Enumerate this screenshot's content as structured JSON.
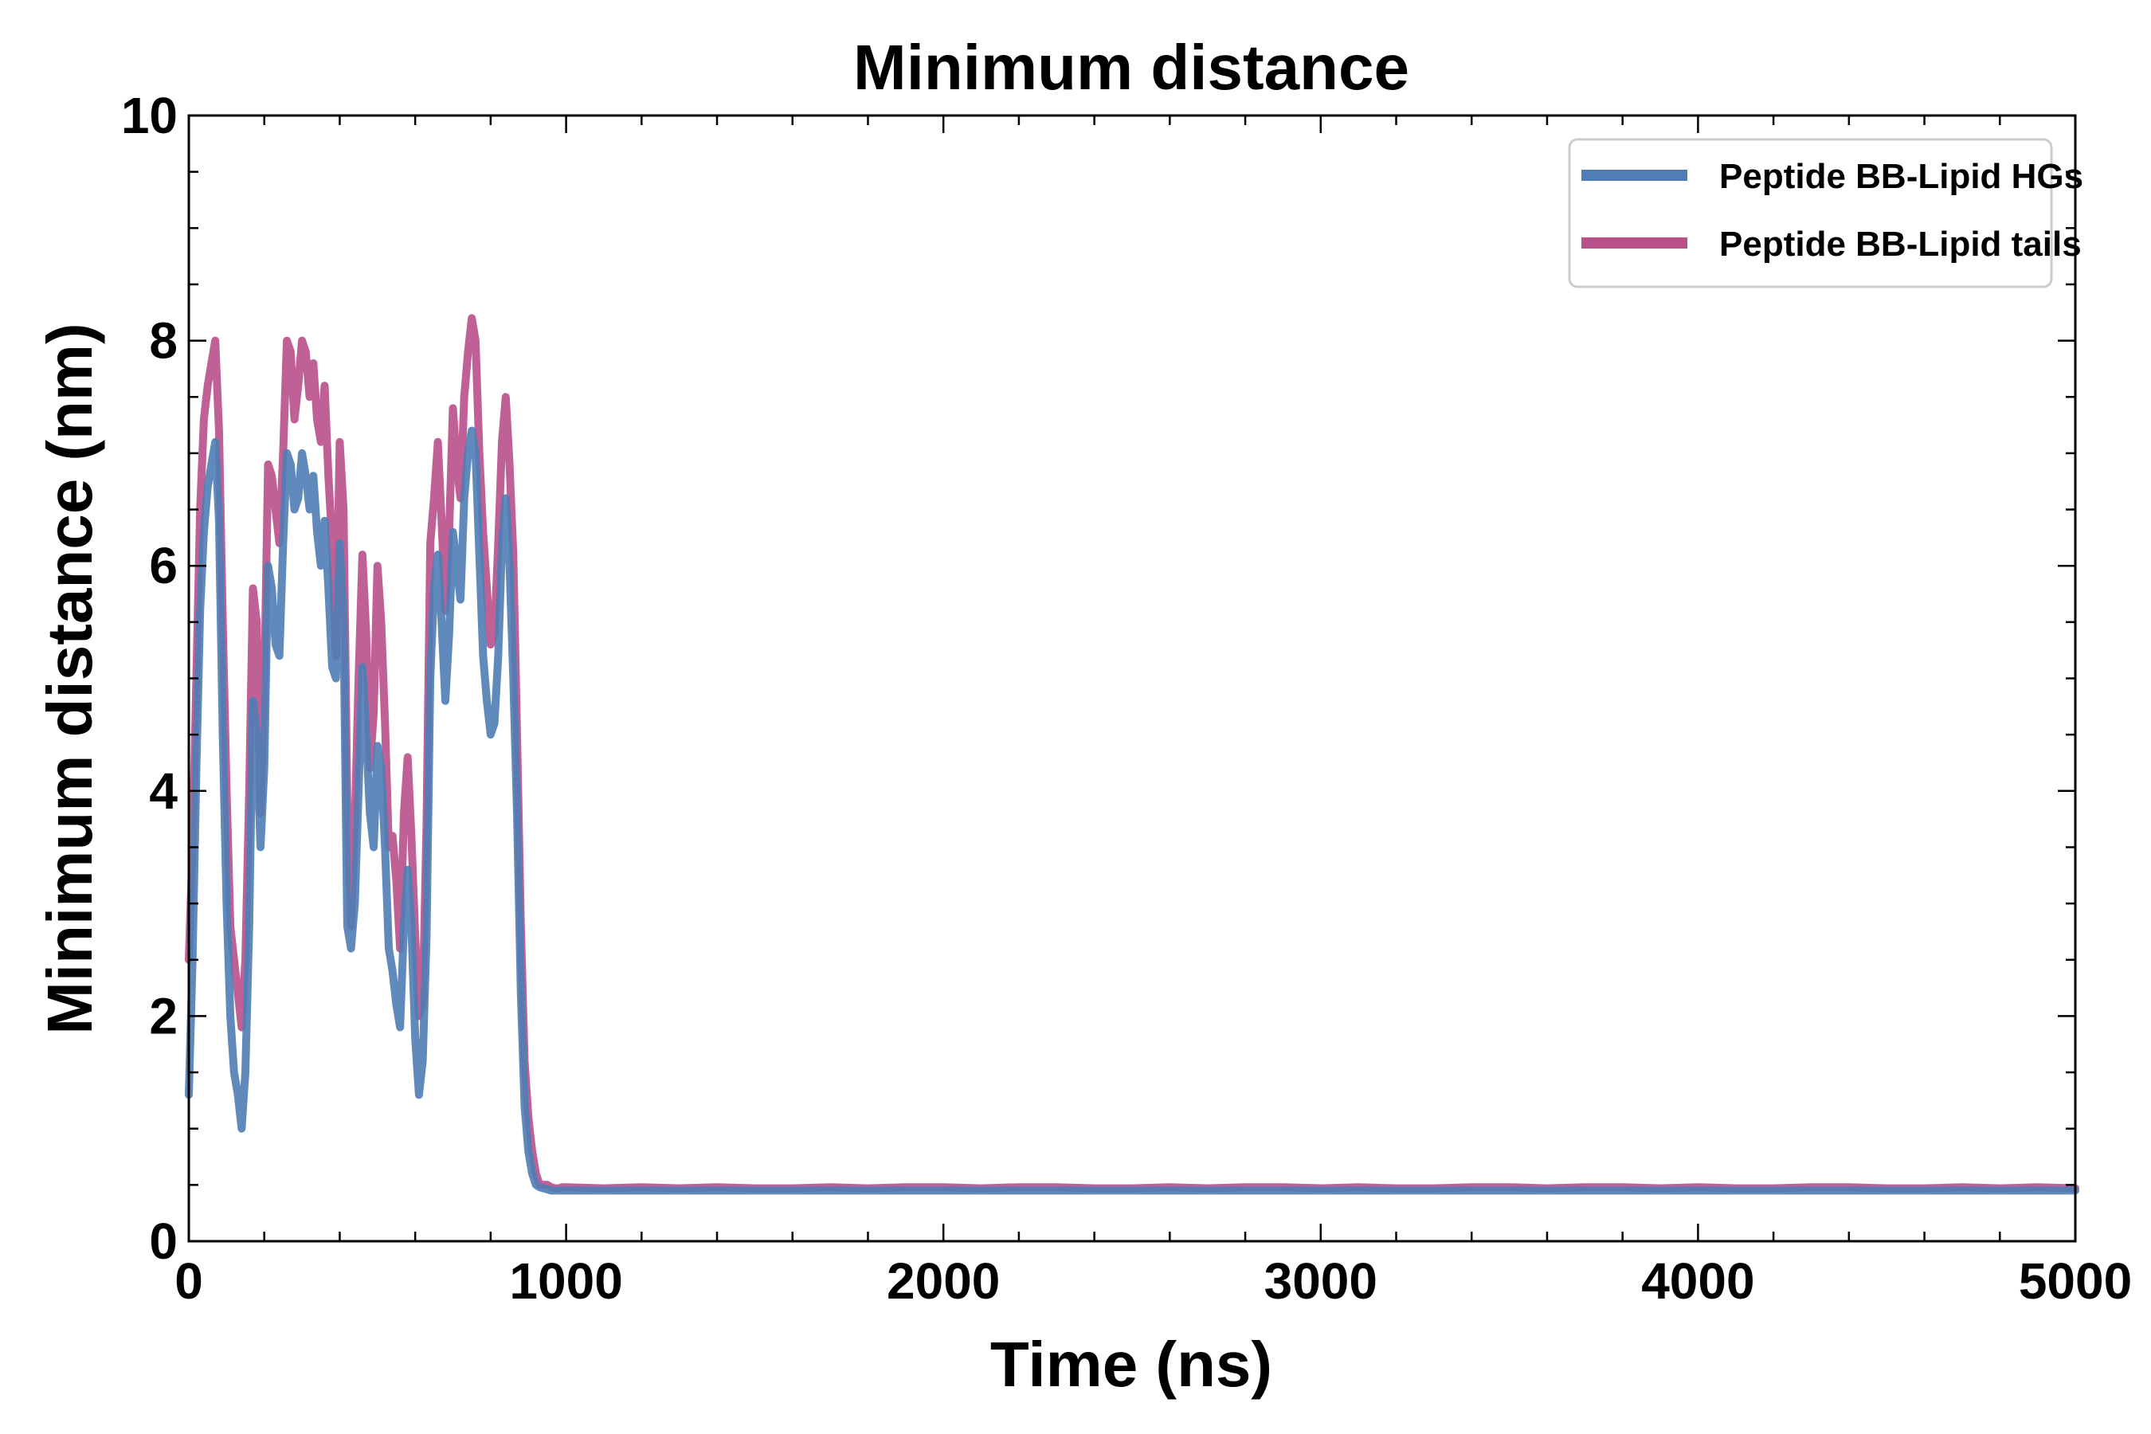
{
  "chart_data": {
    "type": "line",
    "title": "Minimum distance",
    "xlabel": "Time (ns)",
    "ylabel": "Minimum distance (nm)",
    "xlim": [
      0,
      5000
    ],
    "ylim": [
      0,
      10
    ],
    "x_ticks": [
      0,
      1000,
      2000,
      3000,
      4000,
      5000
    ],
    "y_ticks": [
      0,
      2,
      4,
      6,
      8,
      10
    ],
    "x_minor_step": 200,
    "y_minor_step": 0.5,
    "grid": false,
    "legend_position": "top-right",
    "series": [
      {
        "name": "Peptide BB-Lipid tails",
        "color": "#B8508A",
        "x": [
          0,
          10,
          20,
          30,
          40,
          50,
          60,
          70,
          80,
          90,
          100,
          110,
          120,
          130,
          140,
          150,
          160,
          170,
          180,
          190,
          200,
          210,
          220,
          230,
          240,
          250,
          260,
          270,
          280,
          290,
          300,
          310,
          320,
          330,
          340,
          350,
          360,
          370,
          380,
          390,
          400,
          410,
          420,
          430,
          440,
          450,
          460,
          470,
          480,
          490,
          500,
          510,
          520,
          530,
          540,
          550,
          560,
          570,
          580,
          590,
          600,
          610,
          620,
          630,
          640,
          650,
          660,
          670,
          680,
          690,
          700,
          710,
          720,
          730,
          740,
          750,
          760,
          770,
          780,
          790,
          800,
          810,
          820,
          830,
          840,
          850,
          860,
          870,
          880,
          890,
          900,
          910,
          920,
          930,
          940,
          950,
          960,
          970,
          980,
          990,
          1000,
          1100,
          1200,
          1300,
          1400,
          1500,
          1600,
          1700,
          1800,
          1900,
          2000,
          2100,
          2200,
          2300,
          2400,
          2500,
          2600,
          2700,
          2800,
          2900,
          3000,
          3100,
          3200,
          3300,
          3400,
          3500,
          3600,
          3700,
          3800,
          3900,
          4000,
          4100,
          4200,
          4300,
          4400,
          4500,
          4600,
          4700,
          4800,
          4900,
          5000
        ],
        "y": [
          2.5,
          3.5,
          5.0,
          6.5,
          7.3,
          7.6,
          7.8,
          8.0,
          7.2,
          5.5,
          4.0,
          2.8,
          2.5,
          2.2,
          1.9,
          2.5,
          4.0,
          5.8,
          5.5,
          3.8,
          4.9,
          6.9,
          6.8,
          6.5,
          6.2,
          7.0,
          8.0,
          7.9,
          7.3,
          7.6,
          8.0,
          7.9,
          7.5,
          7.8,
          7.3,
          7.1,
          7.6,
          6.8,
          6.2,
          5.2,
          7.1,
          6.5,
          3.9,
          2.8,
          3.7,
          5.0,
          6.1,
          5.4,
          4.2,
          4.7,
          6.0,
          5.5,
          4.6,
          3.5,
          3.6,
          3.2,
          2.6,
          3.8,
          4.3,
          3.6,
          2.7,
          2.0,
          2.1,
          3.7,
          6.2,
          6.6,
          7.1,
          6.4,
          5.6,
          6.3,
          7.4,
          6.9,
          6.6,
          7.5,
          7.9,
          8.2,
          8.0,
          7.0,
          6.3,
          5.8,
          5.3,
          5.4,
          6.2,
          7.1,
          7.5,
          6.9,
          6.1,
          4.5,
          2.8,
          1.6,
          1.1,
          0.8,
          0.6,
          0.5,
          0.5,
          0.5,
          0.48,
          0.47,
          0.47,
          0.48,
          0.48,
          0.47,
          0.48,
          0.47,
          0.48,
          0.47,
          0.47,
          0.48,
          0.47,
          0.48,
          0.48,
          0.47,
          0.48,
          0.48,
          0.47,
          0.47,
          0.48,
          0.47,
          0.48,
          0.48,
          0.47,
          0.48,
          0.47,
          0.47,
          0.48,
          0.48,
          0.47,
          0.48,
          0.48,
          0.47,
          0.48,
          0.47,
          0.47,
          0.48,
          0.48,
          0.47,
          0.47,
          0.48,
          0.47,
          0.48,
          0.47
        ]
      },
      {
        "name": "Peptide BB-Lipid HGs",
        "color": "#4F7DB5",
        "x": [
          0,
          10,
          20,
          30,
          40,
          50,
          60,
          70,
          80,
          90,
          100,
          110,
          120,
          130,
          140,
          150,
          160,
          170,
          180,
          190,
          200,
          210,
          220,
          230,
          240,
          250,
          260,
          270,
          280,
          290,
          300,
          310,
          320,
          330,
          340,
          350,
          360,
          370,
          380,
          390,
          400,
          410,
          420,
          430,
          440,
          450,
          460,
          470,
          480,
          490,
          500,
          510,
          520,
          530,
          540,
          550,
          560,
          570,
          580,
          590,
          600,
          610,
          620,
          630,
          640,
          650,
          660,
          670,
          680,
          690,
          700,
          710,
          720,
          730,
          740,
          750,
          760,
          770,
          780,
          790,
          800,
          810,
          820,
          830,
          840,
          850,
          860,
          870,
          880,
          890,
          900,
          910,
          920,
          930,
          940,
          950,
          960,
          970,
          980,
          990,
          1000,
          1100,
          1200,
          1300,
          1400,
          1500,
          1600,
          1700,
          1800,
          1900,
          2000,
          2100,
          2200,
          2300,
          2400,
          2500,
          2600,
          2700,
          2800,
          2900,
          3000,
          3100,
          3200,
          3300,
          3400,
          3500,
          3600,
          3700,
          3800,
          3900,
          4000,
          4100,
          4200,
          4300,
          4400,
          4500,
          4600,
          4700,
          4800,
          4900,
          5000
        ],
        "y": [
          1.3,
          2.5,
          4.2,
          5.6,
          6.3,
          6.7,
          6.9,
          7.1,
          6.4,
          4.5,
          3.0,
          2.0,
          1.5,
          1.3,
          1.0,
          1.5,
          2.8,
          4.8,
          4.5,
          3.5,
          4.2,
          6.0,
          5.8,
          5.3,
          5.2,
          6.2,
          7.0,
          6.9,
          6.5,
          6.6,
          7.0,
          6.8,
          6.5,
          6.8,
          6.3,
          6.0,
          6.4,
          5.8,
          5.1,
          5.0,
          6.2,
          5.5,
          2.8,
          2.6,
          3.0,
          4.0,
          5.1,
          4.5,
          3.8,
          3.5,
          4.4,
          4.2,
          3.5,
          2.6,
          2.4,
          2.1,
          1.9,
          2.8,
          3.3,
          2.8,
          1.8,
          1.3,
          1.6,
          2.7,
          5.0,
          5.8,
          6.1,
          5.5,
          4.8,
          5.4,
          6.3,
          6.0,
          5.7,
          6.6,
          7.0,
          7.2,
          7.0,
          6.1,
          5.2,
          4.8,
          4.5,
          4.6,
          5.2,
          6.2,
          6.6,
          6.0,
          5.0,
          3.8,
          2.2,
          1.2,
          0.8,
          0.6,
          0.5,
          0.48,
          0.47,
          0.46,
          0.45,
          0.45,
          0.45,
          0.45,
          0.45,
          0.45,
          0.45,
          0.45,
          0.45,
          0.45,
          0.45,
          0.45,
          0.45,
          0.45,
          0.45,
          0.45,
          0.45,
          0.45,
          0.45,
          0.45,
          0.45,
          0.45,
          0.45,
          0.45,
          0.45,
          0.45,
          0.45,
          0.45,
          0.45,
          0.45,
          0.45,
          0.45,
          0.45,
          0.45,
          0.45,
          0.45,
          0.45,
          0.45,
          0.45,
          0.45,
          0.45,
          0.45,
          0.45,
          0.45,
          0.45
        ]
      }
    ],
    "legend": [
      {
        "label": "Peptide BB-Lipid HGs",
        "color": "#4F7DB5"
      },
      {
        "label": "Peptide BB-Lipid tails",
        "color": "#B8508A"
      }
    ]
  }
}
